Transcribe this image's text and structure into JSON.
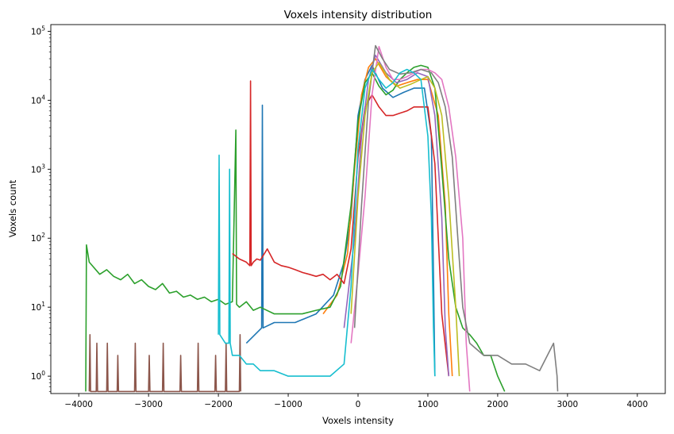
{
  "chart_data": {
    "type": "line",
    "title": "Voxels intensity distribution",
    "xlabel": "Voxels intensity",
    "ylabel": "Voxels count",
    "xlim": [
      -4400,
      4400
    ],
    "ylim": [
      0.56,
      125000
    ],
    "yscale": "log",
    "grid": false,
    "legend": "none",
    "xticks": [
      -4000,
      -3000,
      -2000,
      -1000,
      0,
      1000,
      2000,
      3000,
      4000
    ],
    "xtick_labels": [
      "−4000",
      "−3000",
      "−2000",
      "−1000",
      "0",
      "1000",
      "2000",
      "3000",
      "4000"
    ],
    "yticks": [
      1,
      10,
      100,
      1000,
      10000,
      100000
    ],
    "ytick_labels": [
      "10^0",
      "10^1",
      "10^2",
      "10^3",
      "10^4",
      "10^5"
    ],
    "palette": [
      "#1f77b4",
      "#ff7f0e",
      "#2ca02c",
      "#d62728",
      "#9467bd",
      "#8c564b",
      "#e377c2",
      "#7f7f7f",
      "#bcbd22",
      "#17becf"
    ],
    "series": [
      {
        "color": "#1f77b4",
        "x": [
          -1600,
          -1380,
          -1370,
          -1360,
          -1200,
          -900,
          -600,
          -350,
          -200,
          -100,
          0,
          100,
          200,
          350,
          500,
          650,
          800,
          950,
          1050,
          1080,
          1100
        ],
        "y": [
          3,
          5,
          8500,
          5,
          6,
          6,
          8,
          15,
          45,
          200,
          6000,
          20000,
          32000,
          15000,
          11000,
          13000,
          15000,
          15000,
          3000,
          30,
          1
        ]
      },
      {
        "color": "#ff7f0e",
        "x": [
          -500,
          -300,
          -150,
          -50,
          50,
          150,
          250,
          400,
          550,
          700,
          850,
          1000,
          1150,
          1250,
          1300,
          1350
        ],
        "y": [
          8,
          15,
          60,
          1000,
          12000,
          30000,
          40000,
          22000,
          16000,
          18000,
          20000,
          20000,
          6000,
          300,
          8,
          1
        ]
      },
      {
        "color": "#2ca02c",
        "x": [
          -3900,
          -3890,
          -3850,
          -3700,
          -3600,
          -3500,
          -3400,
          -3300,
          -3200,
          -3100,
          -3000,
          -2900,
          -2800,
          -2700,
          -2600,
          -2500,
          -2400,
          -2300,
          -2200,
          -2100,
          -2000,
          -1900,
          -1800,
          -1750,
          -1740,
          -1700,
          -1600,
          -1500,
          -1400,
          -1200,
          -1000,
          -800,
          -600,
          -400,
          -250,
          -100,
          0,
          100,
          200,
          300,
          400,
          500,
          600,
          700,
          800,
          900,
          1000,
          1100,
          1200,
          1300,
          1400,
          1500,
          1600,
          1700,
          1800,
          1900,
          2000,
          2100
        ],
        "y": [
          0.6,
          80,
          45,
          30,
          35,
          28,
          25,
          30,
          22,
          25,
          20,
          18,
          22,
          16,
          17,
          14,
          15,
          13,
          14,
          12,
          13,
          11,
          12,
          3700,
          11,
          10,
          12,
          9,
          10,
          8,
          8,
          8,
          9,
          10,
          20,
          300,
          5000,
          18000,
          25000,
          16000,
          12000,
          14000,
          20000,
          25000,
          30000,
          32000,
          30000,
          15000,
          1000,
          50,
          10,
          5,
          4,
          3,
          2,
          2,
          1,
          0.6
        ]
      },
      {
        "color": "#d62728",
        "x": [
          -1800,
          -1700,
          -1600,
          -1550,
          -1540,
          -1530,
          -1500,
          -1450,
          -1400,
          -1300,
          -1200,
          -1100,
          -1000,
          -900,
          -800,
          -700,
          -600,
          -500,
          -400,
          -300,
          -200,
          -100,
          0,
          100,
          200,
          300,
          400,
          500,
          600,
          700,
          800,
          900,
          1000,
          1100,
          1200,
          1300
        ],
        "y": [
          60,
          50,
          45,
          40,
          19000,
          40,
          45,
          50,
          48,
          70,
          45,
          40,
          38,
          35,
          32,
          30,
          28,
          30,
          25,
          30,
          22,
          70,
          1500,
          8000,
          12000,
          8000,
          6000,
          6000,
          6500,
          7000,
          8000,
          8000,
          8000,
          1200,
          8,
          1
        ]
      },
      {
        "color": "#9467bd",
        "x": [
          -200,
          -50,
          50,
          150,
          250,
          400,
          550,
          700,
          850,
          1000,
          1100,
          1200,
          1250,
          1300
        ],
        "y": [
          5,
          100,
          3000,
          20000,
          45000,
          25000,
          18000,
          20000,
          25000,
          22000,
          6000,
          200,
          5,
          1
        ]
      },
      {
        "color": "#8c564b",
        "x": [
          -3850,
          -3840,
          -3830,
          -3750,
          -3740,
          -3730,
          -3600,
          -3590,
          -3580,
          -3450,
          -3440,
          -3430,
          -3200,
          -3190,
          -3180,
          -3000,
          -2990,
          -2980,
          -2800,
          -2790,
          -2780,
          -2550,
          -2540,
          -2530,
          -2300,
          -2290,
          -2280,
          -2050,
          -2040,
          -2030,
          -1900,
          -1890,
          -1880,
          -1700,
          -1690,
          -1680
        ],
        "y": [
          0.6,
          4,
          0.6,
          0.6,
          3,
          0.6,
          0.6,
          3,
          0.6,
          0.6,
          2,
          0.6,
          0.6,
          3,
          0.6,
          0.6,
          2,
          0.6,
          0.6,
          3,
          0.6,
          0.6,
          2,
          0.6,
          0.6,
          3,
          0.6,
          0.6,
          2,
          0.6,
          0.6,
          3,
          0.6,
          0.6,
          4,
          0.6
        ]
      },
      {
        "color": "#e377c2",
        "x": [
          -100,
          0,
          100,
          200,
          300,
          400,
          500,
          600,
          700,
          800,
          900,
          1000,
          1100,
          1200,
          1300,
          1400,
          1500,
          1550,
          1600
        ],
        "y": [
          3,
          30,
          400,
          12000,
          60000,
          30000,
          20000,
          20000,
          22000,
          25000,
          28000,
          28000,
          25000,
          20000,
          8000,
          1500,
          100,
          3,
          0.6
        ]
      },
      {
        "color": "#7f7f7f",
        "x": [
          -50,
          50,
          150,
          250,
          350,
          450,
          600,
          750,
          900,
          1050,
          1150,
          1250,
          1350,
          1450,
          1500,
          1600,
          1800,
          2000,
          2200,
          2400,
          2600,
          2800,
          2850,
          2860
        ],
        "y": [
          5,
          300,
          10000,
          62000,
          40000,
          28000,
          24000,
          25000,
          28000,
          25000,
          18000,
          8000,
          1500,
          50,
          10,
          3,
          2,
          2,
          1.5,
          1.5,
          1.2,
          3,
          1,
          0.6
        ]
      },
      {
        "color": "#bcbd22",
        "x": [
          -100,
          0,
          100,
          200,
          300,
          450,
          600,
          750,
          900,
          1000,
          1100,
          1200,
          1300,
          1400,
          1450
        ],
        "y": [
          8,
          400,
          6000,
          25000,
          35000,
          20000,
          15000,
          17000,
          20000,
          22000,
          15000,
          6000,
          400,
          10,
          1
        ]
      },
      {
        "color": "#17becf",
        "x": [
          -2000,
          -1990,
          -1980,
          -1900,
          -1850,
          -1840,
          -1830,
          -1800,
          -1700,
          -1600,
          -1500,
          -1400,
          -1200,
          -1000,
          -800,
          -600,
          -400,
          -200,
          -100,
          0,
          100,
          200,
          300,
          400,
          500,
          600,
          700,
          800,
          900,
          1000,
          1050,
          1080,
          1100
        ],
        "y": [
          4,
          1600,
          4,
          3,
          3,
          1000,
          3,
          2,
          2,
          1.5,
          1.5,
          1.2,
          1.2,
          1,
          1,
          1,
          1,
          1.5,
          20,
          2000,
          15000,
          28000,
          20000,
          15000,
          18000,
          25000,
          28000,
          25000,
          20000,
          3000,
          200,
          5,
          1
        ]
      }
    ]
  }
}
